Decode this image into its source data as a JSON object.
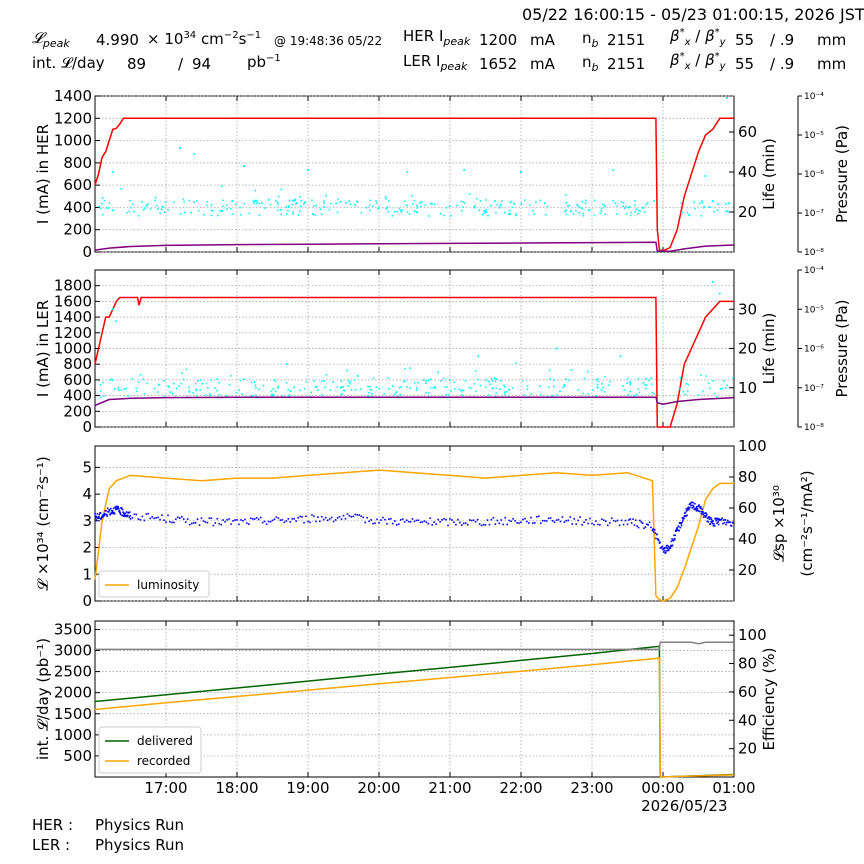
{
  "header": {
    "time_range": "05/22 16:00:15 - 05/23 01:00:15, 2026 JST",
    "lpeak_label": "𝓛",
    "lpeak_sub": "peak",
    "lpeak_value": "4.990",
    "lpeak_unit_a": "× 10",
    "lpeak_unit_exp": "34",
    "lpeak_unit_b": " cm",
    "lpeak_unit_exp2": "−2",
    "lpeak_unit_c": "s",
    "lpeak_unit_exp3": "−1",
    "lpeak_time": "@ 19:48:36 05/22",
    "intl_label": "int. 𝓛/day",
    "intl_delivered": "89",
    "intl_sep": "/",
    "intl_recorded": "94",
    "intl_unit": "pb",
    "intl_unit_exp": "−1",
    "her_label": "HER I",
    "her_sub": "peak",
    "her_value": "1200",
    "her_unit": "mA",
    "ler_label": "LER I",
    "ler_sub": "peak",
    "ler_value": "1652",
    "ler_unit": "mA",
    "nb_label": "n",
    "nb_sub": "b",
    "her_nb": "2151",
    "ler_nb": "2151",
    "beta_label": "β",
    "beta_x_sub": "x",
    "beta_y_sub": "y",
    "beta_sup": "*",
    "beta_sep": " / ",
    "her_beta_x": "55",
    "her_beta_y": "/ .9",
    "ler_beta_x": "55",
    "ler_beta_y": "/ .9",
    "beta_unit": "mm"
  },
  "footer": {
    "her_label": "HER :",
    "her_status": "Physics Run",
    "ler_label": "LER :",
    "ler_status": "Physics Run"
  },
  "colors": {
    "current": "#ff0000",
    "life": "#00ffff",
    "pressure": "#800080",
    "luminosity": "#ffa500",
    "specific": "#0000ff",
    "delivered": "#006400",
    "recorded": "#ffa500",
    "efficiency": "#808080",
    "grid": "#999999"
  },
  "chart_data": [
    {
      "id": "her",
      "type": "line",
      "ylabel": "I (mA) in HER",
      "ylabel2": "Life (min)",
      "ylabel3": "Pressure (Pa)",
      "ylim": [
        0,
        1400
      ],
      "yticks": [
        0,
        200,
        400,
        600,
        800,
        1000,
        1200,
        1400
      ],
      "ylim2": [
        0,
        78
      ],
      "yticks2": [
        20,
        40,
        60
      ],
      "y3_log": true,
      "ylim3_exp": [
        -8,
        -4
      ],
      "yticks3": [
        "10⁻⁸",
        "10⁻⁷",
        "10⁻⁶",
        "10⁻⁵",
        "10⁻⁴"
      ],
      "series": [
        {
          "key": "current",
          "x": [
            0,
            0.05,
            0.1,
            0.15,
            0.2,
            0.25,
            0.3,
            0.35,
            0.4,
            0.45,
            0.5,
            1,
            2,
            3,
            4,
            5,
            6,
            7,
            7.9,
            7.92,
            7.95,
            8.0,
            8.1,
            8.2,
            8.3,
            8.4,
            8.5,
            8.6,
            8.7,
            8.8,
            9.0
          ],
          "y": [
            600,
            700,
            850,
            900,
            1000,
            1100,
            1110,
            1150,
            1200,
            1200,
            1200,
            1200,
            1200,
            1200,
            1200,
            1200,
            1200,
            1200,
            1200,
            200,
            20,
            10,
            40,
            200,
            500,
            700,
            900,
            1050,
            1100,
            1200,
            1200
          ]
        },
        {
          "key": "life",
          "style": "dots",
          "axis": 2,
          "x_start": 0.05,
          "x_end": 9.0,
          "base": 22,
          "spread": 4,
          "outliers": [
            [
              0.25,
              40
            ],
            [
              1.2,
              52
            ],
            [
              1.4,
              49
            ],
            [
              2.1,
              43
            ],
            [
              3.0,
              41
            ],
            [
              4.4,
              40
            ],
            [
              5.2,
              41
            ],
            [
              6.0,
              40
            ],
            [
              7.3,
              41
            ],
            [
              8.6,
              38
            ],
            [
              8.9,
              77
            ]
          ]
        },
        {
          "key": "pressure",
          "axis": 3,
          "x": [
            0,
            0.2,
            0.5,
            1,
            2,
            3,
            4,
            5,
            6,
            7,
            7.9,
            7.92,
            8.1,
            8.3,
            8.6,
            9.0
          ],
          "y": [
            -7.95,
            -7.9,
            -7.86,
            -7.83,
            -7.81,
            -7.8,
            -7.79,
            -7.78,
            -7.77,
            -7.76,
            -7.75,
            -7.98,
            -7.98,
            -7.92,
            -7.85,
            -7.82
          ]
        }
      ]
    },
    {
      "id": "ler",
      "type": "line",
      "ylabel": "I (mA) in LER",
      "ylabel2": "Life (min)",
      "ylabel3": "Pressure (Pa)",
      "ylim": [
        0,
        2000
      ],
      "yticks": [
        0,
        200,
        400,
        600,
        800,
        1000,
        1200,
        1400,
        1600,
        1800
      ],
      "ylim2": [
        0,
        40
      ],
      "yticks2": [
        10,
        20,
        30
      ],
      "y3_log": true,
      "ylim3_exp": [
        -8,
        -4
      ],
      "yticks3": [
        "10⁻⁸",
        "10⁻⁷",
        "10⁻⁶",
        "10⁻⁵",
        "10⁻⁴"
      ],
      "series": [
        {
          "key": "current",
          "x": [
            0,
            0.05,
            0.1,
            0.15,
            0.2,
            0.25,
            0.3,
            0.35,
            0.4,
            0.45,
            0.5,
            0.6,
            0.62,
            0.65,
            1,
            2,
            3,
            4,
            5,
            6,
            7,
            7.9,
            7.92,
            7.95,
            8.1,
            8.2,
            8.3,
            8.4,
            8.5,
            8.6,
            8.7,
            8.8,
            9.0
          ],
          "y": [
            800,
            1000,
            1200,
            1400,
            1400,
            1500,
            1600,
            1650,
            1650,
            1650,
            1650,
            1650,
            1550,
            1650,
            1650,
            1650,
            1650,
            1650,
            1650,
            1650,
            1650,
            1650,
            0,
            0,
            0,
            300,
            800,
            1000,
            1200,
            1400,
            1500,
            1600,
            1600
          ]
        },
        {
          "key": "life",
          "style": "dots",
          "axis": 2,
          "x_start": 0.05,
          "x_end": 9.0,
          "base": 10,
          "spread": 2.5,
          "outliers": [
            [
              0.25,
              30
            ],
            [
              0.3,
              27
            ],
            [
              2.7,
              16
            ],
            [
              3.7,
              13
            ],
            [
              5.4,
              18
            ],
            [
              6.5,
              20
            ],
            [
              7.4,
              18
            ],
            [
              8.7,
              37
            ],
            [
              8.8,
              34
            ]
          ]
        },
        {
          "key": "pressure",
          "axis": 3,
          "x": [
            0,
            0.2,
            0.5,
            1,
            2,
            3,
            4,
            5,
            6,
            7,
            7.9,
            7.92,
            8.0,
            8.2,
            8.5,
            9.0
          ],
          "y": [
            -7.45,
            -7.3,
            -7.27,
            -7.25,
            -7.24,
            -7.24,
            -7.24,
            -7.24,
            -7.24,
            -7.24,
            -7.24,
            -7.38,
            -7.42,
            -7.35,
            -7.3,
            -7.25
          ]
        }
      ]
    },
    {
      "id": "lumi",
      "type": "line",
      "ylabel": "𝓛 ×10³⁴ (cm⁻²s⁻¹)",
      "ylabel2": "𝓛sp ×10³⁰",
      "ylabel2b": "(cm⁻²s⁻¹/mA²)",
      "ylim": [
        0,
        5.8
      ],
      "yticks": [
        0,
        1,
        2,
        3,
        4,
        5
      ],
      "ylim2": [
        0,
        100
      ],
      "yticks2": [
        20,
        40,
        60,
        80,
        100
      ],
      "legend": [
        "luminosity"
      ],
      "legend_position": "lower-left",
      "series": [
        {
          "key": "luminosity",
          "name": "luminosity",
          "x": [
            0,
            0.1,
            0.2,
            0.3,
            0.4,
            0.5,
            1,
            1.5,
            2,
            2.5,
            3,
            3.5,
            4,
            4.5,
            5,
            5.5,
            6,
            6.5,
            7,
            7.5,
            7.85,
            7.9,
            7.95,
            8.0,
            8.1,
            8.2,
            8.3,
            8.4,
            8.5,
            8.6,
            8.7,
            8.8,
            9.0
          ],
          "y": [
            0.8,
            3.0,
            4.2,
            4.5,
            4.6,
            4.7,
            4.6,
            4.5,
            4.6,
            4.6,
            4.7,
            4.8,
            4.9,
            4.8,
            4.7,
            4.6,
            4.7,
            4.8,
            4.7,
            4.8,
            4.5,
            0.2,
            0.05,
            0.0,
            0.1,
            0.5,
            1.2,
            2.0,
            2.8,
            3.8,
            4.2,
            4.4,
            4.4
          ]
        },
        {
          "key": "specific",
          "style": "dots",
          "axis": 2,
          "x": [
            0,
            0.1,
            0.2,
            0.3,
            0.4,
            0.5,
            1,
            1.5,
            2,
            2.5,
            3,
            3.5,
            4,
            4.5,
            5,
            5.5,
            6,
            6.5,
            7,
            7.5,
            7.85,
            8.0,
            8.1,
            8.2,
            8.3,
            8.4,
            8.5,
            8.6,
            8.7,
            8.8,
            9.0
          ],
          "y": [
            54,
            55,
            58,
            59,
            57,
            55,
            53,
            51,
            51,
            52,
            53,
            54,
            52,
            51,
            51,
            51,
            52,
            53,
            51,
            51,
            48,
            32,
            35,
            45,
            55,
            62,
            60,
            55,
            50,
            52,
            50
          ]
        }
      ]
    },
    {
      "id": "int",
      "type": "line",
      "ylabel": "int. 𝓛/day (pb⁻¹)",
      "ylabel2": "Efficiency (%)",
      "ylim": [
        0,
        3700
      ],
      "yticks": [
        500,
        1000,
        1500,
        2000,
        2500,
        3000,
        3500
      ],
      "ylim2": [
        0,
        110
      ],
      "yticks2": [
        20,
        40,
        60,
        80,
        100
      ],
      "legend": [
        "delivered",
        "recorded"
      ],
      "legend_position": "lower-left",
      "xlim": [
        0,
        9.0
      ],
      "xticks": [
        1,
        2,
        3,
        4,
        5,
        6,
        7,
        8,
        9
      ],
      "xticklabels": [
        "17:00",
        "18:00",
        "19:00",
        "20:00",
        "21:00",
        "22:00",
        "23:00",
        "00:00",
        "01:00"
      ],
      "xdate": "2026/05/23",
      "series": [
        {
          "key": "delivered",
          "name": "delivered",
          "x": [
            0,
            1,
            2,
            3,
            4,
            5,
            6,
            7,
            7.95,
            7.96,
            8.5,
            9.0
          ],
          "y": [
            1790,
            1950,
            2110,
            2275,
            2440,
            2600,
            2765,
            2930,
            3100,
            0,
            30,
            60
          ]
        },
        {
          "key": "recorded",
          "name": "recorded",
          "x": [
            0,
            1,
            2,
            3,
            4,
            5,
            6,
            7,
            7.95,
            7.96,
            8.5,
            9.0
          ],
          "y": [
            1600,
            1760,
            1910,
            2060,
            2210,
            2360,
            2510,
            2660,
            2820,
            0,
            25,
            50
          ]
        },
        {
          "key": "efficiency",
          "axis": 2,
          "x": [
            0,
            1,
            2,
            3,
            4,
            5,
            6,
            7,
            7.95,
            7.96,
            8.2,
            8.4,
            8.5,
            8.6,
            9.0
          ],
          "y": [
            90,
            90,
            90,
            90,
            90,
            90,
            90,
            90,
            90,
            95,
            95,
            95,
            94,
            95,
            95
          ]
        }
      ]
    }
  ]
}
